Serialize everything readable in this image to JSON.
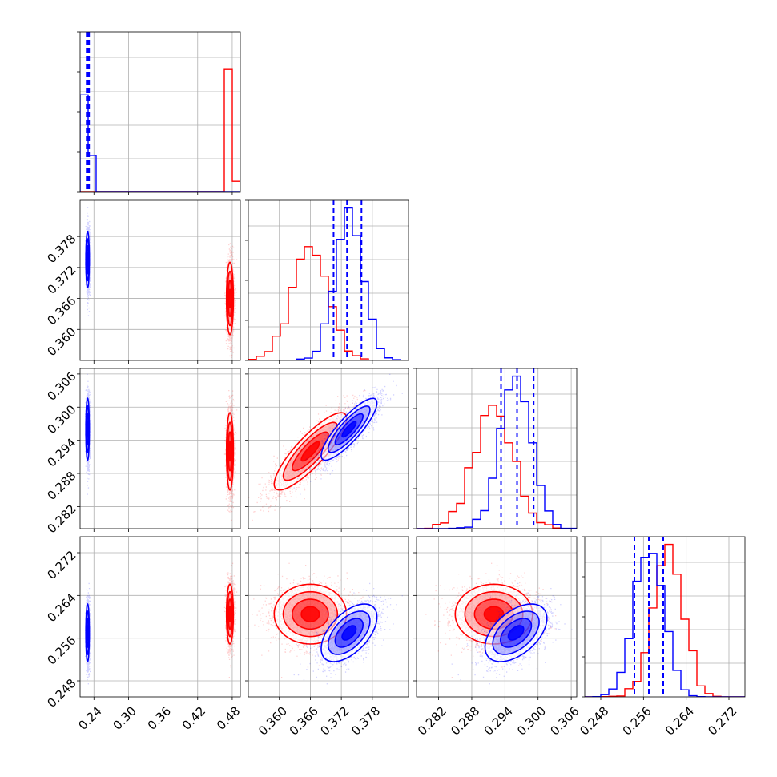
{
  "chart_data": {
    "type": "corner",
    "grid": true,
    "colors": {
      "red": "#ff0000",
      "blue": "#0000ff"
    },
    "params": [
      {
        "key": "p0",
        "range": [
          0.216,
          0.494
        ],
        "ticks": [
          "0.24",
          "0.30",
          "0.36",
          "0.42",
          "0.48"
        ]
      },
      {
        "key": "p1",
        "range": [
          0.354,
          0.385
        ],
        "ticks": [
          "0.360",
          "0.366",
          "0.372",
          "0.378"
        ]
      },
      {
        "key": "p2",
        "range": [
          0.278,
          0.307
        ],
        "ticks": [
          "0.282",
          "0.288",
          "0.294",
          "0.300",
          "0.306"
        ]
      },
      {
        "key": "p3",
        "range": [
          0.245,
          0.275
        ],
        "ticks": [
          "0.248",
          "0.256",
          "0.264",
          "0.272"
        ]
      }
    ],
    "series": [
      {
        "color": "red",
        "mean": [
          0.476,
          0.366,
          0.292,
          0.2605
        ],
        "sd": [
          0.003,
          0.0035,
          0.0035,
          0.0028
        ],
        "rho": [
          [
            1,
            0,
            0,
            0
          ],
          [
            0,
            1,
            0.85,
            0
          ],
          [
            0,
            0.85,
            1,
            0
          ],
          [
            0,
            0,
            0,
            1
          ]
        ]
      },
      {
        "color": "blue",
        "mean": [
          0.229,
          0.3735,
          0.296,
          0.257
        ],
        "sd": [
          0.0015,
          0.0027,
          0.0028,
          0.0027
        ],
        "rho": [
          [
            1,
            0,
            0,
            0
          ],
          [
            0,
            1,
            0.85,
            0.55
          ],
          [
            0,
            0.85,
            1,
            0.5
          ],
          [
            0,
            0.55,
            0.5,
            1
          ]
        ]
      }
    ],
    "quantiles": [
      {
        "panel": 0,
        "values": [
          0.2285,
          0.2295,
          0.2305
        ]
      },
      {
        "panel": 1,
        "values": [
          0.3705,
          0.3731,
          0.3759
        ]
      },
      {
        "panel": 2,
        "values": [
          0.2933,
          0.2962,
          0.2992
        ]
      },
      {
        "panel": 3,
        "values": [
          0.2543,
          0.257,
          0.2597
        ]
      }
    ]
  }
}
